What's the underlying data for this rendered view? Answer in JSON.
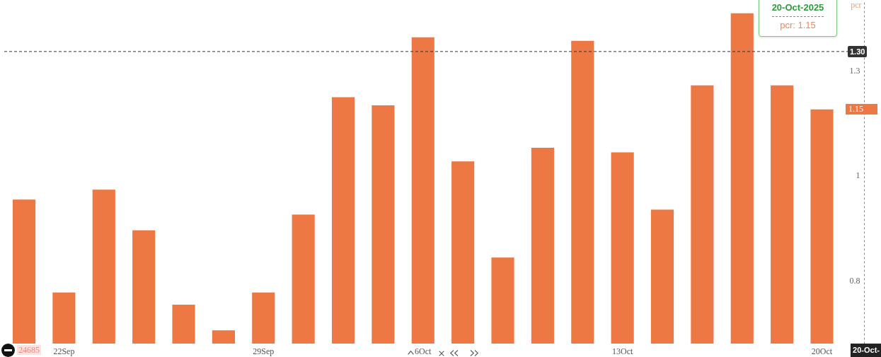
{
  "chart_data": {
    "type": "bar",
    "categories": [
      null,
      "22Sep",
      null,
      null,
      null,
      null,
      "29Sep",
      null,
      null,
      null,
      "6Oct",
      null,
      null,
      null,
      null,
      "13Oct",
      null,
      null,
      null,
      null,
      "20Oct"
    ],
    "values": [
      0.95,
      0.78,
      0.97,
      0.89,
      0.76,
      0.72,
      0.78,
      0.92,
      1.18,
      1.16,
      1.34,
      1.03,
      0.84,
      1.06,
      1.33,
      1.05,
      0.93,
      1.21,
      1.41,
      1.21,
      1.15
    ],
    "color": "#ed7844",
    "ylabel": "pcr",
    "log": true,
    "ylim": [
      0.7,
      1.45
    ],
    "yticks": [
      0.8,
      1,
      {
        "value": 1.25,
        "label": "1.3"
      }
    ],
    "ref_lines": [
      {
        "axis": "y",
        "value": 1.3,
        "label": "1.30",
        "color": "#333333",
        "line_style": "dashed"
      }
    ],
    "annotations": [
      "20-Oct-2025",
      "pcr: 1.15",
      "1.15",
      "20-Oct-",
      "24685"
    ]
  }
}
